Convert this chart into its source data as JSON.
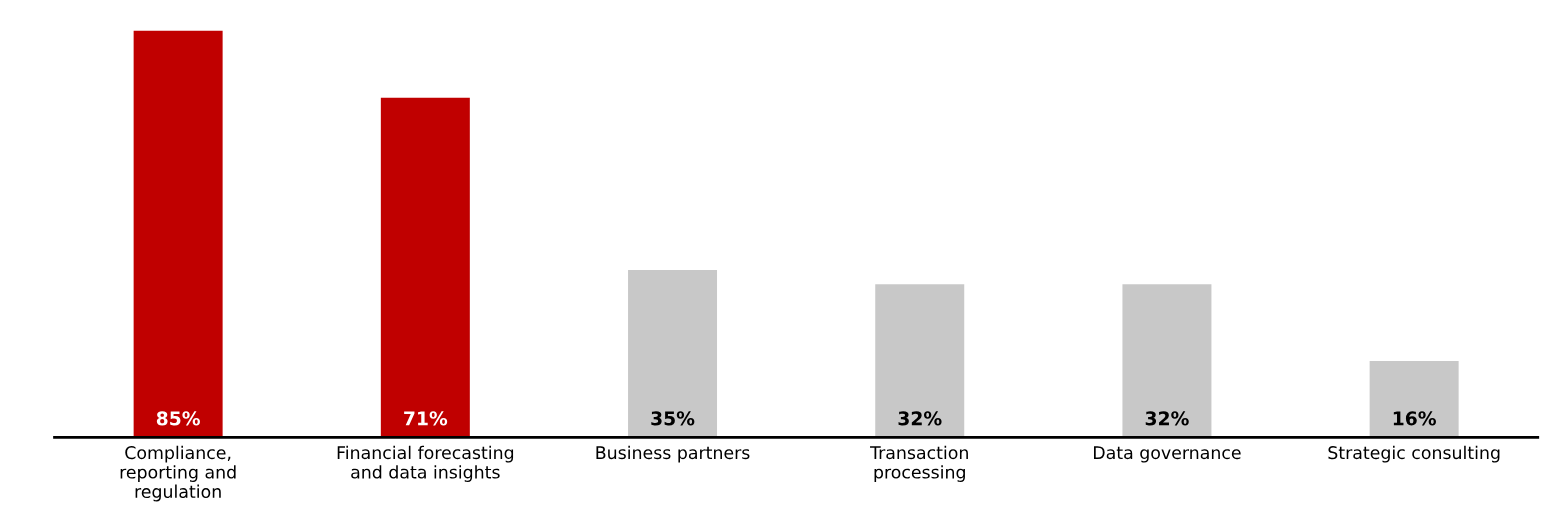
{
  "chart_data": {
    "type": "bar",
    "categories": [
      "Compliance,\nreporting and\nregulation",
      "Financial forecasting\nand data insights",
      "Business partners",
      "Transaction\nprocessing",
      "Data governance",
      "Strategic consulting"
    ],
    "values": [
      85,
      71,
      35,
      32,
      32,
      16
    ],
    "colors": [
      "#c00000",
      "#c00000",
      "#c8c8c8",
      "#c8c8c8",
      "#c8c8c8",
      "#c8c8c8"
    ],
    "value_labels": [
      "85%",
      "71%",
      "35%",
      "32%",
      "32%",
      "16%"
    ],
    "grid": false,
    "legend": false,
    "tick_labels": "x"
  }
}
